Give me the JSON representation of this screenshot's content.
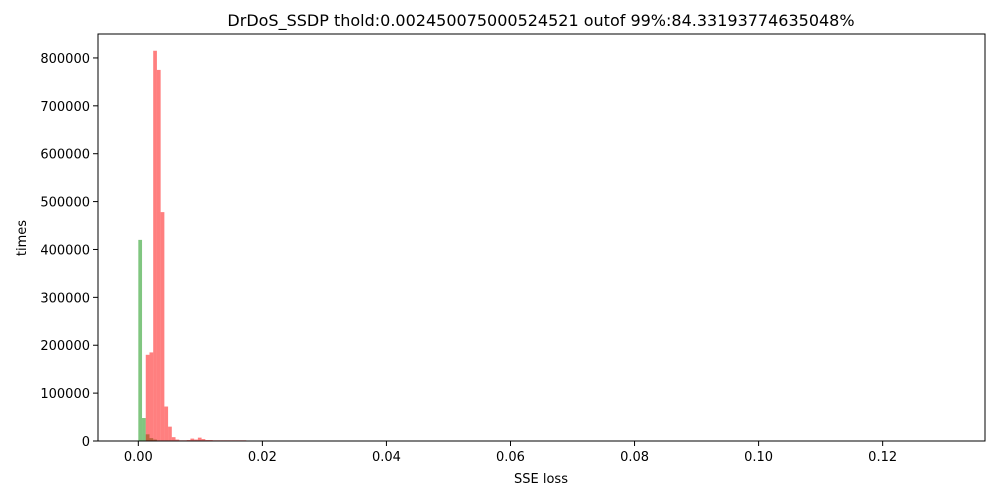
{
  "chart_data": {
    "type": "bar",
    "title": "DrDoS_SSDP thold:0.002450075000524521 outof 99%:84.33193774635048%",
    "xlabel": "SSE loss",
    "ylabel": "times",
    "xlim": [
      -0.0065,
      0.1365
    ],
    "ylim": [
      0,
      850000
    ],
    "xticks": [
      0.0,
      0.02,
      0.04,
      0.06,
      0.08,
      0.1,
      0.12
    ],
    "xtick_labels": [
      "0.00",
      "0.02",
      "0.04",
      "0.06",
      "0.08",
      "0.10",
      "0.12"
    ],
    "yticks": [
      0,
      100000,
      200000,
      300000,
      400000,
      500000,
      600000,
      700000,
      800000
    ],
    "ytick_labels": [
      "0",
      "100000",
      "200000",
      "300000",
      "400000",
      "500000",
      "600000",
      "700000",
      "800000"
    ],
    "grid": false,
    "legend": "none",
    "series": [
      {
        "color": "#2ca02c",
        "opacity": 0.6,
        "bins": [
          {
            "x0": 0.0,
            "x1": 0.0006,
            "value": 420000
          },
          {
            "x0": 0.0006,
            "x1": 0.0012,
            "value": 48000
          },
          {
            "x0": 0.0012,
            "x1": 0.0018,
            "value": 14000
          },
          {
            "x0": 0.0018,
            "x1": 0.0024,
            "value": 6000
          },
          {
            "x0": 0.0024,
            "x1": 0.003,
            "value": 3000
          }
        ]
      },
      {
        "color": "#ff0000",
        "opacity": 0.5,
        "bins": [
          {
            "x0": 0.0012,
            "x1": 0.0018,
            "value": 180000
          },
          {
            "x0": 0.0018,
            "x1": 0.0024,
            "value": 185000
          },
          {
            "x0": 0.0024,
            "x1": 0.003,
            "value": 815000
          },
          {
            "x0": 0.003,
            "x1": 0.0036,
            "value": 775000
          },
          {
            "x0": 0.0036,
            "x1": 0.0042,
            "value": 478000
          },
          {
            "x0": 0.0042,
            "x1": 0.0048,
            "value": 72000
          },
          {
            "x0": 0.0048,
            "x1": 0.0054,
            "value": 30000
          },
          {
            "x0": 0.0054,
            "x1": 0.006,
            "value": 8000
          },
          {
            "x0": 0.006,
            "x1": 0.0066,
            "value": 3000
          },
          {
            "x0": 0.0066,
            "x1": 0.0072,
            "value": 1500
          },
          {
            "x0": 0.0072,
            "x1": 0.0078,
            "value": 1500
          },
          {
            "x0": 0.0078,
            "x1": 0.0084,
            "value": 2000
          },
          {
            "x0": 0.0084,
            "x1": 0.009,
            "value": 5000
          },
          {
            "x0": 0.009,
            "x1": 0.0096,
            "value": 3000
          },
          {
            "x0": 0.0096,
            "x1": 0.0102,
            "value": 7000
          },
          {
            "x0": 0.0102,
            "x1": 0.0108,
            "value": 4000
          },
          {
            "x0": 0.0108,
            "x1": 0.0114,
            "value": 2000
          },
          {
            "x0": 0.0114,
            "x1": 0.012,
            "value": 2000
          },
          {
            "x0": 0.012,
            "x1": 0.0126,
            "value": 1500
          },
          {
            "x0": 0.0126,
            "x1": 0.0132,
            "value": 1500
          },
          {
            "x0": 0.0132,
            "x1": 0.0138,
            "value": 1500
          },
          {
            "x0": 0.0138,
            "x1": 0.0144,
            "value": 1500
          },
          {
            "x0": 0.0144,
            "x1": 0.015,
            "value": 1500
          },
          {
            "x0": 0.015,
            "x1": 0.0156,
            "value": 1500
          },
          {
            "x0": 0.0156,
            "x1": 0.0162,
            "value": 1500
          },
          {
            "x0": 0.0162,
            "x1": 0.0168,
            "value": 1500
          },
          {
            "x0": 0.0168,
            "x1": 0.0174,
            "value": 1500
          },
          {
            "x0": 0.0174,
            "x1": 0.018,
            "value": 1000
          }
        ]
      }
    ]
  }
}
